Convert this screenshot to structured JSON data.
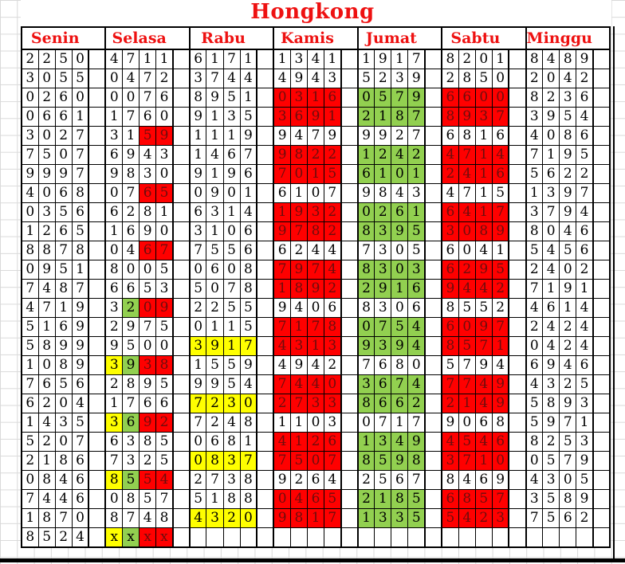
{
  "title": "Hongkong",
  "days": [
    "Senin",
    "Selasa",
    "Rabu",
    "Kamis",
    "Jumat",
    "Sabtu",
    "Minggu"
  ],
  "highlight_colors": {
    "r": "#FF0000",
    "g": "#92D050",
    "y": "#FFFF00",
    "red_cell_text": "#6D0D0D",
    "header_text": "#EE1111"
  },
  "rows": [
    [
      [
        "2250",
        ""
      ],
      [
        "4711",
        ""
      ],
      [
        "6171",
        ""
      ],
      [
        "1341",
        ""
      ],
      [
        "1917",
        ""
      ],
      [
        "8201",
        ""
      ],
      [
        "8489",
        ""
      ]
    ],
    [
      [
        "3055",
        ""
      ],
      [
        "0472",
        ""
      ],
      [
        "3744",
        ""
      ],
      [
        "4943",
        ""
      ],
      [
        "5239",
        ""
      ],
      [
        "2850",
        ""
      ],
      [
        "2042",
        ""
      ]
    ],
    [
      [
        "0260",
        ""
      ],
      [
        "0076",
        ""
      ],
      [
        "8951",
        ""
      ],
      [
        "0316",
        "rrrr"
      ],
      [
        "0579",
        "gggg"
      ],
      [
        "6600",
        "rrrr"
      ],
      [
        "8236",
        ""
      ]
    ],
    [
      [
        "0661",
        ""
      ],
      [
        "1760",
        ""
      ],
      [
        "9135",
        ""
      ],
      [
        "3691",
        "rrrr"
      ],
      [
        "2187",
        "gggg"
      ],
      [
        "8937",
        "rrrr"
      ],
      [
        "3954",
        ""
      ]
    ],
    [
      [
        "3027",
        ""
      ],
      [
        "3159",
        "wwrr"
      ],
      [
        "1119",
        ""
      ],
      [
        "9479",
        ""
      ],
      [
        "9927",
        ""
      ],
      [
        "6816",
        ""
      ],
      [
        "4086",
        ""
      ]
    ],
    [
      [
        "7507",
        ""
      ],
      [
        "6943",
        ""
      ],
      [
        "1467",
        ""
      ],
      [
        "9822",
        "rrrr"
      ],
      [
        "1242",
        "gggg"
      ],
      [
        "4714",
        "rrrr"
      ],
      [
        "7195",
        ""
      ]
    ],
    [
      [
        "9997",
        ""
      ],
      [
        "9830",
        ""
      ],
      [
        "9196",
        ""
      ],
      [
        "7015",
        "rrrr"
      ],
      [
        "6101",
        "gggg"
      ],
      [
        "2416",
        "rrrr"
      ],
      [
        "5622",
        ""
      ]
    ],
    [
      [
        "4068",
        ""
      ],
      [
        "0765",
        "wwrr"
      ],
      [
        "0901",
        ""
      ],
      [
        "6107",
        ""
      ],
      [
        "9843",
        ""
      ],
      [
        "4715",
        ""
      ],
      [
        "1397",
        ""
      ]
    ],
    [
      [
        "0356",
        ""
      ],
      [
        "6281",
        ""
      ],
      [
        "6314",
        ""
      ],
      [
        "1932",
        "rrrr"
      ],
      [
        "0261",
        "gggg"
      ],
      [
        "6417",
        "rrrr"
      ],
      [
        "3794",
        ""
      ]
    ],
    [
      [
        "1265",
        ""
      ],
      [
        "1690",
        ""
      ],
      [
        "3106",
        ""
      ],
      [
        "9782",
        "rrrr"
      ],
      [
        "8395",
        "gggg"
      ],
      [
        "3089",
        "rrrr"
      ],
      [
        "8046",
        ""
      ]
    ],
    [
      [
        "8878",
        ""
      ],
      [
        "0467",
        "wwrr"
      ],
      [
        "7556",
        ""
      ],
      [
        "6244",
        ""
      ],
      [
        "7305",
        ""
      ],
      [
        "6041",
        ""
      ],
      [
        "5456",
        ""
      ]
    ],
    [
      [
        "0951",
        ""
      ],
      [
        "8005",
        ""
      ],
      [
        "0608",
        ""
      ],
      [
        "7974",
        "rrrr"
      ],
      [
        "8303",
        "gggg"
      ],
      [
        "6295",
        "rrrr"
      ],
      [
        "2402",
        ""
      ]
    ],
    [
      [
        "7487",
        ""
      ],
      [
        "6653",
        ""
      ],
      [
        "5078",
        ""
      ],
      [
        "1892",
        "rrrr"
      ],
      [
        "2916",
        "gggg"
      ],
      [
        "9442",
        "rrrr"
      ],
      [
        "7191",
        ""
      ]
    ],
    [
      [
        "4719",
        ""
      ],
      [
        "3209",
        "wgrr"
      ],
      [
        "2255",
        ""
      ],
      [
        "9406",
        ""
      ],
      [
        "8306",
        ""
      ],
      [
        "8552",
        ""
      ],
      [
        "4614",
        ""
      ]
    ],
    [
      [
        "5169",
        ""
      ],
      [
        "2975",
        ""
      ],
      [
        "0115",
        ""
      ],
      [
        "7178",
        "rrrr"
      ],
      [
        "0754",
        "gggg"
      ],
      [
        "6097",
        "rrrr"
      ],
      [
        "2424",
        ""
      ]
    ],
    [
      [
        "5899",
        ""
      ],
      [
        "9500",
        ""
      ],
      [
        "3917",
        "yyyy"
      ],
      [
        "4313",
        "rrrr"
      ],
      [
        "9394",
        "gggg"
      ],
      [
        "8571",
        "rrrr"
      ],
      [
        "0424",
        ""
      ]
    ],
    [
      [
        "1089",
        ""
      ],
      [
        "3938",
        "ygrr"
      ],
      [
        "1559",
        ""
      ],
      [
        "4942",
        ""
      ],
      [
        "7680",
        ""
      ],
      [
        "5794",
        ""
      ],
      [
        "6946",
        ""
      ]
    ],
    [
      [
        "7656",
        ""
      ],
      [
        "2895",
        ""
      ],
      [
        "9954",
        ""
      ],
      [
        "7440",
        "rrrr"
      ],
      [
        "3674",
        "gggg"
      ],
      [
        "7749",
        "rrrr"
      ],
      [
        "4325",
        ""
      ]
    ],
    [
      [
        "6204",
        ""
      ],
      [
        "1766",
        ""
      ],
      [
        "7230",
        "yyyy"
      ],
      [
        "2733",
        "rrrr"
      ],
      [
        "8662",
        "gggg"
      ],
      [
        "2149",
        "rrrr"
      ],
      [
        "5893",
        ""
      ]
    ],
    [
      [
        "1435",
        ""
      ],
      [
        "3692",
        "ygrr"
      ],
      [
        "7248",
        ""
      ],
      [
        "1103",
        ""
      ],
      [
        "0717",
        ""
      ],
      [
        "9068",
        ""
      ],
      [
        "5971",
        ""
      ]
    ],
    [
      [
        "5207",
        ""
      ],
      [
        "6385",
        ""
      ],
      [
        "0681",
        ""
      ],
      [
        "4126",
        "rrrr"
      ],
      [
        "1349",
        "gggg"
      ],
      [
        "4546",
        "rrrr"
      ],
      [
        "8253",
        ""
      ]
    ],
    [
      [
        "2186",
        ""
      ],
      [
        "7325",
        ""
      ],
      [
        "0837",
        "yyyy"
      ],
      [
        "7507",
        "rrrr"
      ],
      [
        "8598",
        "gggg"
      ],
      [
        "3710",
        "rrrr"
      ],
      [
        "0579",
        ""
      ]
    ],
    [
      [
        "0846",
        ""
      ],
      [
        "8554",
        "ygrr"
      ],
      [
        "2738",
        ""
      ],
      [
        "9264",
        ""
      ],
      [
        "2567",
        ""
      ],
      [
        "8469",
        ""
      ],
      [
        "4305",
        ""
      ]
    ],
    [
      [
        "7446",
        ""
      ],
      [
        "0857",
        ""
      ],
      [
        "5188",
        ""
      ],
      [
        "0465",
        "rrrr"
      ],
      [
        "2185",
        "gggg"
      ],
      [
        "6857",
        "rrrr"
      ],
      [
        "3589",
        ""
      ]
    ],
    [
      [
        "1870",
        ""
      ],
      [
        "8748",
        ""
      ],
      [
        "4320",
        "yyyy"
      ],
      [
        "9817",
        "rrrr"
      ],
      [
        "1335",
        "gggg"
      ],
      [
        "5423",
        "rrrr"
      ],
      [
        "7562",
        ""
      ]
    ],
    [
      [
        "8524",
        ""
      ],
      [
        "xxxx",
        "ygrr"
      ],
      [
        "",
        ""
      ],
      [
        "",
        ""
      ],
      [
        "",
        ""
      ],
      [
        "",
        ""
      ],
      [
        "",
        ""
      ]
    ]
  ]
}
